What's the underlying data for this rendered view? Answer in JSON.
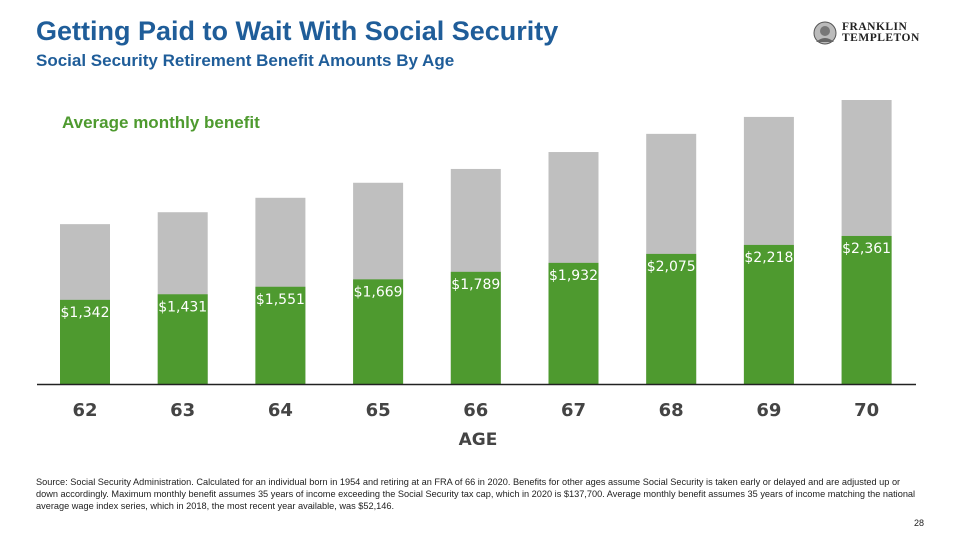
{
  "header": {
    "title": "Getting Paid to Wait With Social Security",
    "subtitle": "Social Security Retirement Benefit Amounts By Age",
    "logo_text": [
      "FRANKLIN",
      "TEMPLETON"
    ]
  },
  "chart_data": {
    "type": "bar",
    "stacked": "overlay",
    "annotation": "Average monthly benefit",
    "xlabel": "AGE",
    "categories": [
      "62",
      "63",
      "64",
      "65",
      "66",
      "67",
      "68",
      "69",
      "70"
    ],
    "series": [
      {
        "key": "average",
        "values": [
          1342,
          1431,
          1551,
          1669,
          1789,
          1932,
          2075,
          2218,
          2361
        ],
        "labels": [
          "$1,342",
          "$1,431",
          "$1,551",
          "$1,669",
          "$1,789",
          "$1,932",
          "$2,075",
          "$2,218",
          "$2,361"
        ],
        "color": "#4e9a2f"
      },
      {
        "key": "maximum",
        "values": [
          2550,
          2740,
          2970,
          3210,
          3430,
          3700,
          3990,
          4260,
          4530
        ],
        "color": "#bfbfbf"
      }
    ],
    "ylim": [
      0,
      4600
    ],
    "grid": false
  },
  "footnote": "Source: Social Security Administration. Calculated for an individual born in 1954 and retiring at an FRA of 66 in 2020. Benefits for other ages assume Social Security is taken early or delayed and are adjusted up or down accordingly. Maximum monthly benefit assumes 35 years of income exceeding the Social Security tax cap, which in 2020 is $137,700. Average monthly benefit assumes 35 years of income matching the national average wage index series, which in 2018, the most recent year available, was $52,146.",
  "page_number": "28"
}
